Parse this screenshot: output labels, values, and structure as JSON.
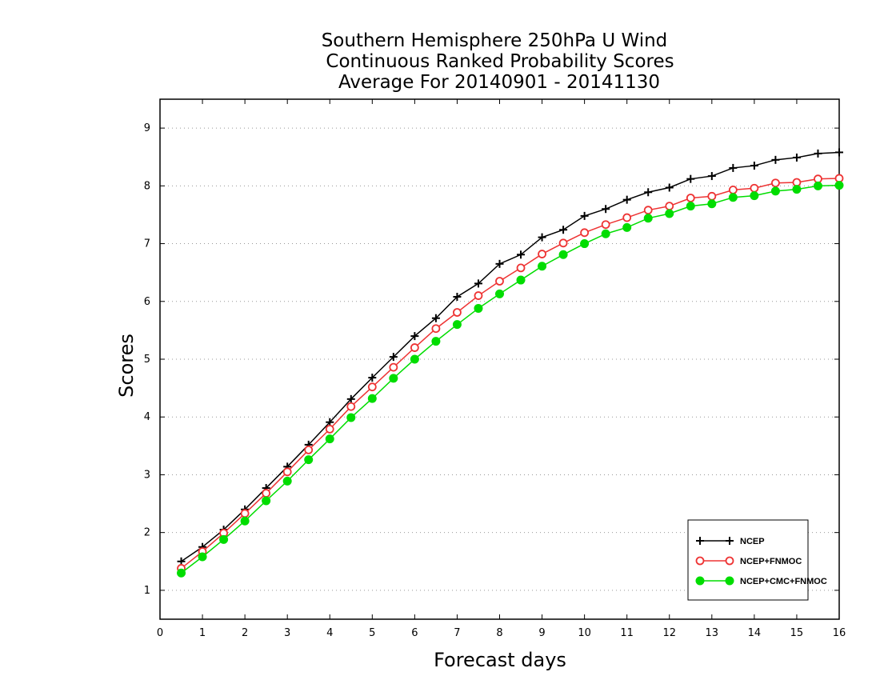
{
  "chart_data": {
    "type": "line",
    "title_lines": [
      "Southern Hemisphere 250hPa U Wind",
      "Continuous Ranked Probability Scores",
      "Average For 20140901 - 20141130"
    ],
    "xlabel": "Forecast days",
    "ylabel": "Scores",
    "xlim": [
      0,
      16
    ],
    "ylim": [
      0.5,
      9.5
    ],
    "x_ticks": [
      "0",
      "1",
      "2",
      "3",
      "4",
      "5",
      "6",
      "7",
      "8",
      "9",
      "10",
      "11",
      "12",
      "13",
      "14",
      "15",
      "16"
    ],
    "y_ticks": [
      "1",
      "2",
      "3",
      "4",
      "5",
      "6",
      "7",
      "8",
      "9"
    ],
    "grid": "horizontal dotted",
    "legend_position": "bottom-right",
    "x": [
      0.5,
      1,
      1.5,
      2,
      2.5,
      3,
      3.5,
      4,
      4.5,
      5,
      5.5,
      6,
      6.5,
      7,
      7.5,
      8,
      8.5,
      9,
      9.5,
      10,
      10.5,
      11,
      11.5,
      12,
      12.5,
      13,
      13.5,
      14,
      14.5,
      15,
      15.5,
      16
    ],
    "series": [
      {
        "name": "NCEP",
        "color": "#000000",
        "marker": "plus",
        "values": [
          1.5,
          1.75,
          2.05,
          2.4,
          2.77,
          3.14,
          3.52,
          3.91,
          4.31,
          4.68,
          5.04,
          5.4,
          5.71,
          6.08,
          6.31,
          6.65,
          6.81,
          7.11,
          7.24,
          7.48,
          7.6,
          7.76,
          7.89,
          7.97,
          8.12,
          8.17,
          8.31,
          8.35,
          8.45,
          8.49,
          8.56,
          8.58
        ]
      },
      {
        "name": "NCEP+FNMOC",
        "color": "#ee3333",
        "marker": "open-circle",
        "values": [
          1.38,
          1.67,
          1.99,
          2.33,
          2.68,
          3.05,
          3.43,
          3.79,
          4.18,
          4.52,
          4.86,
          5.2,
          5.53,
          5.81,
          6.1,
          6.35,
          6.58,
          6.82,
          7.01,
          7.19,
          7.33,
          7.45,
          7.58,
          7.65,
          7.79,
          7.82,
          7.93,
          7.96,
          8.05,
          8.06,
          8.12,
          8.13
        ]
      },
      {
        "name": "NCEP+CMC+FNMOC",
        "color": "#00dd00",
        "marker": "filled-circle",
        "values": [
          1.3,
          1.58,
          1.88,
          2.2,
          2.55,
          2.89,
          3.26,
          3.62,
          3.99,
          4.32,
          4.67,
          5.0,
          5.31,
          5.6,
          5.88,
          6.13,
          6.37,
          6.61,
          6.81,
          7.0,
          7.17,
          7.28,
          7.44,
          7.52,
          7.65,
          7.69,
          7.8,
          7.83,
          7.91,
          7.94,
          8.0,
          8.01
        ]
      }
    ]
  }
}
